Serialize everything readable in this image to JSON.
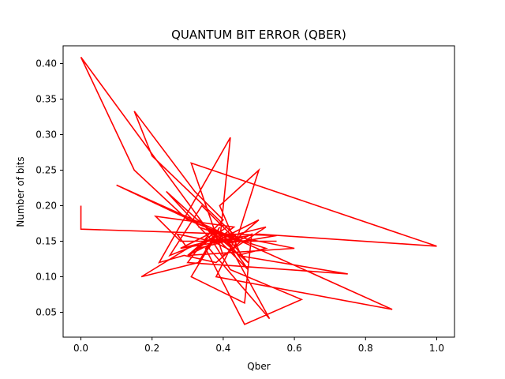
{
  "chart_data": {
    "type": "line",
    "title": "QUANTUM BIT ERROR (QBER)",
    "xlabel": "Qber",
    "ylabel": "Number of bits",
    "xlim": [
      -0.05,
      1.05
    ],
    "ylim": [
      0.015,
      0.425
    ],
    "xticks": [
      "0.0",
      "0.2",
      "0.4",
      "0.6",
      "0.8",
      "1.0"
    ],
    "yticks": [
      "0.05",
      "0.10",
      "0.15",
      "0.20",
      "0.25",
      "0.30",
      "0.35",
      "0.40"
    ],
    "grid": false,
    "color": "#ff0000",
    "series": [
      {
        "x": [
          0.0,
          0.0,
          0.55,
          0.48,
          0.42,
          0.37,
          0.3,
          0.41,
          0.33,
          0.45,
          0.38,
          0.0,
          0.15,
          0.3,
          0.45,
          0.2,
          0.15,
          0.32,
          0.4,
          0.36,
          0.28,
          0.52,
          0.4,
          0.31,
          1.0,
          0.5,
          0.37,
          0.45,
          0.39,
          0.5,
          0.43,
          0.35,
          0.42,
          0.47,
          0.33,
          0.47,
          0.4,
          0.6,
          0.3,
          0.5,
          0.43,
          0.38,
          0.875,
          0.45,
          0.33,
          0.52,
          0.44,
          0.75,
          0.3,
          0.36,
          0.28,
          0.4,
          0.55,
          0.28,
          0.21,
          0.43,
          0.35,
          0.46,
          0.62,
          0.42,
          0.37,
          0.27,
          0.3,
          0.17,
          0.33,
          0.39,
          0.36,
          0.53,
          0.4,
          0.25,
          0.34,
          0.44,
          0.48,
          0.46,
          0.31,
          0.37,
          0.24,
          0.35,
          0.1,
          0.45,
          0.38,
          0.29,
          0.22,
          0.42,
          0.39
        ],
        "y": [
          0.2,
          0.167,
          0.158,
          0.152,
          0.148,
          0.16,
          0.13,
          0.17,
          0.14,
          0.155,
          0.15,
          0.409,
          0.25,
          0.18,
          0.15,
          0.27,
          0.333,
          0.22,
          0.18,
          0.16,
          0.14,
          0.17,
          0.13,
          0.26,
          0.143,
          0.16,
          0.15,
          0.13,
          0.2,
          0.25,
          0.14,
          0.17,
          0.15,
          0.12,
          0.18,
          0.11,
          0.16,
          0.14,
          0.13,
          0.18,
          0.15,
          0.1,
          0.054,
          0.15,
          0.17,
          0.14,
          0.13,
          0.104,
          0.12,
          0.16,
          0.14,
          0.15,
          0.15,
          0.15,
          0.185,
          0.17,
          0.14,
          0.033,
          0.068,
          0.11,
          0.15,
          0.16,
          0.14,
          0.1,
          0.12,
          0.17,
          0.14,
          0.041,
          0.16,
          0.13,
          0.2,
          0.15,
          0.16,
          0.063,
          0.1,
          0.15,
          0.22,
          0.17,
          0.229,
          0.15,
          0.12,
          0.13,
          0.12,
          0.296,
          0.15
        ]
      }
    ]
  }
}
